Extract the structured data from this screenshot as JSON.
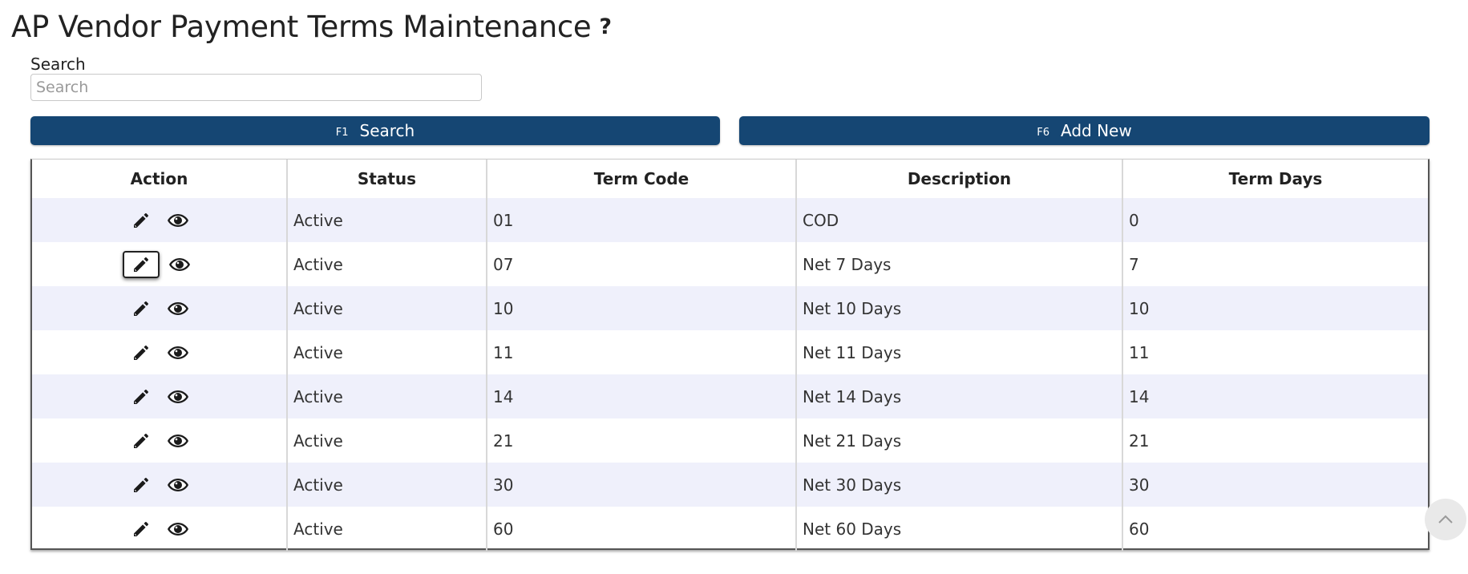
{
  "page": {
    "title": "AP Vendor Payment Terms Maintenance",
    "help_label": "?"
  },
  "search": {
    "label": "Search",
    "placeholder": "Search",
    "value": ""
  },
  "toolbar": {
    "search_key": "F1",
    "search_label": "Search",
    "add_key": "F6",
    "add_label": "Add New"
  },
  "table": {
    "headers": {
      "action": "Action",
      "status": "Status",
      "code": "Term Code",
      "description": "Description",
      "days": "Term Days"
    },
    "rows": [
      {
        "status": "Active",
        "code": "01",
        "description": "COD",
        "days": "0"
      },
      {
        "status": "Active",
        "code": "07",
        "description": "Net 7 Days",
        "days": "7"
      },
      {
        "status": "Active",
        "code": "10",
        "description": "Net 10 Days",
        "days": "10"
      },
      {
        "status": "Active",
        "code": "11",
        "description": "Net 11 Days",
        "days": "11"
      },
      {
        "status": "Active",
        "code": "14",
        "description": "Net 14 Days",
        "days": "14"
      },
      {
        "status": "Active",
        "code": "21",
        "description": "Net 21 Days",
        "days": "21"
      },
      {
        "status": "Active",
        "code": "30",
        "description": "Net 30 Days",
        "days": "30"
      },
      {
        "status": "Active",
        "code": "60",
        "description": "Net 60 Days",
        "days": "60"
      }
    ]
  },
  "icons": {
    "edit": "pencil-icon",
    "view": "eye-icon",
    "scroll_top": "chevron-up-icon"
  },
  "colors": {
    "button_bg": "#154673",
    "row_alt": "#eff0fb"
  }
}
